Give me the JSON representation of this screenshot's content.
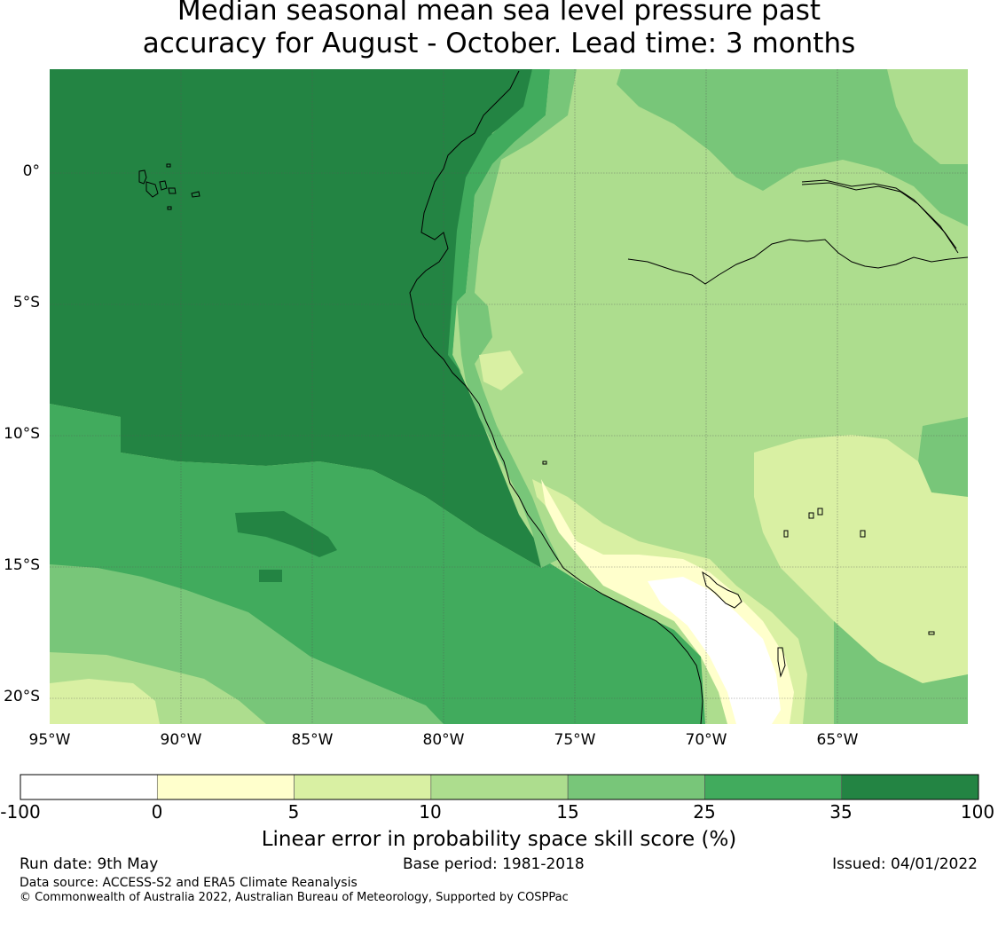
{
  "title": {
    "line1": "Median seasonal mean sea level pressure past",
    "line2": "accuracy for August - October. Lead time: 3 months"
  },
  "map": {
    "lon_labels": [
      "95°W",
      "90°W",
      "85°W",
      "80°W",
      "75°W",
      "70°W",
      "65°W"
    ],
    "lat_labels": [
      "0°",
      "5°S",
      "10°S",
      "15°S",
      "20°S"
    ],
    "colors": {
      "c_lt0": "#ffffff",
      "c_0_5": "#ffffcc",
      "c_5_10": "#d9f0a3",
      "c_10_15": "#addd8e",
      "c_15_25": "#78c679",
      "c_25_35": "#41ab5d",
      "c_35_100": "#238443",
      "coast": "#000000",
      "grid": "#555555"
    }
  },
  "colorbar": {
    "ticks": [
      "-100",
      "0",
      "5",
      "10",
      "15",
      "25",
      "35",
      "100"
    ],
    "colors": [
      "#ffffff",
      "#ffffcc",
      "#d9f0a3",
      "#addd8e",
      "#78c679",
      "#41ab5d",
      "#238443"
    ],
    "label": "Linear error in probability space skill score (%)"
  },
  "footer": {
    "run_date": "Run date: 9th May",
    "base_period": "Base period: 1981-2018",
    "issued": "Issued: 04/01/2022",
    "data_source": "Data source: ACCESS-S2 and ERA5 Climate Reanalysis",
    "copyright": "© Commonwealth of Australia 2022, Australian Bureau of Meteorology, Supported by COSPPac"
  }
}
